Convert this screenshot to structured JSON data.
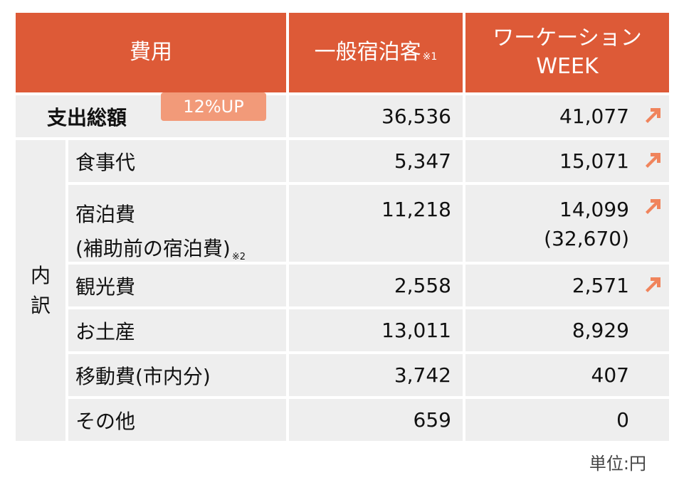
{
  "header": {
    "col_cost": "費用",
    "col_general": "一般宿泊客",
    "col_general_note": "※1",
    "col_workation_line1": "ワーケーション",
    "col_workation_line2": "WEEK"
  },
  "total": {
    "label": "支出総額",
    "badge": "12%UP",
    "general": "36,536",
    "workation": "41,077"
  },
  "breakdown_label": "内\n訳",
  "rows": [
    {
      "label": "食事代",
      "general": "5,347",
      "workation": "15,071",
      "arrow": true
    },
    {
      "label": "宿泊費",
      "label2": "(補助前の宿泊費)",
      "label2_note": "※2",
      "general": "11,218",
      "workation": "14,099",
      "workation2": "(32,670)",
      "arrow": true
    },
    {
      "label": "観光費",
      "general": "2,558",
      "workation": "2,571",
      "arrow": true
    },
    {
      "label": "お土産",
      "general": "13,011",
      "workation": "8,929",
      "arrow": false
    },
    {
      "label": "移動費(市内分)",
      "general": "3,742",
      "workation": "407",
      "arrow": false
    },
    {
      "label": "その他",
      "general": "659",
      "workation": "0",
      "arrow": false
    }
  ],
  "unit_note": "単位:円",
  "colors": {
    "header_bg": "#dd5a37",
    "row_bg": "#eeeeee",
    "badge_bg": "#f29a79",
    "arrow": "#f0845c"
  }
}
